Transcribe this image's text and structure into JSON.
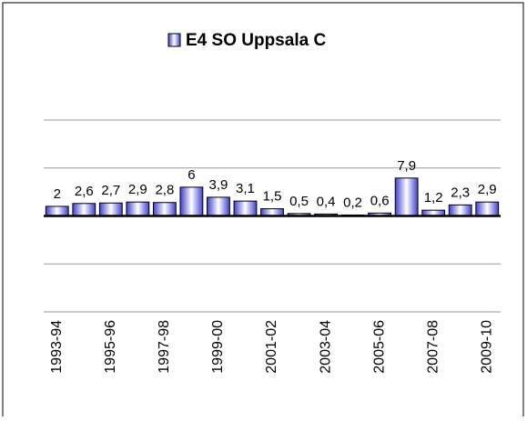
{
  "chart_data": {
    "type": "bar",
    "series": [
      {
        "name": "E4 SO Uppsala C",
        "color": "#4040d0",
        "values": [
          2,
          2.6,
          2.7,
          2.9,
          2.8,
          6,
          3.9,
          3.1,
          1.5,
          0.5,
          0.4,
          0.2,
          0.6,
          7.9,
          1.2,
          2.3,
          2.9
        ],
        "value_labels": [
          "2",
          "2,6",
          "2,7",
          "2,9",
          "2,8",
          "6",
          "3,9",
          "3,1",
          "1,5",
          "0,5",
          "0,4",
          "0,2",
          "0,6",
          "7,9",
          "1,2",
          "2,3",
          "2,9"
        ]
      }
    ],
    "categories": [
      "1993-94",
      null,
      "1995-96",
      null,
      "1997-98",
      null,
      "1999-00",
      null,
      "2001-02",
      null,
      "2003-04",
      null,
      "2005-06",
      null,
      "2007-08",
      null,
      "2009-10"
    ],
    "ylim": [
      -20,
      20
    ],
    "yticks": [
      -20,
      -10,
      0,
      10,
      20
    ],
    "grid": true
  }
}
